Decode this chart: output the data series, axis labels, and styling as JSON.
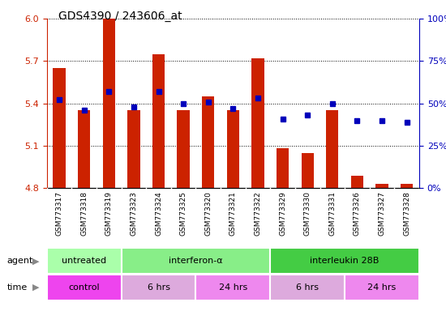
{
  "title": "GDS4390 / 243606_at",
  "samples": [
    "GSM773317",
    "GSM773318",
    "GSM773319",
    "GSM773323",
    "GSM773324",
    "GSM773325",
    "GSM773320",
    "GSM773321",
    "GSM773322",
    "GSM773329",
    "GSM773330",
    "GSM773331",
    "GSM773326",
    "GSM773327",
    "GSM773328"
  ],
  "transformed_count": [
    5.65,
    5.35,
    6.0,
    5.35,
    5.75,
    5.35,
    5.45,
    5.35,
    5.72,
    5.08,
    5.05,
    5.35,
    4.89,
    4.83,
    4.83
  ],
  "percentile_rank": [
    52,
    46,
    57,
    48,
    57,
    50,
    51,
    47,
    53,
    41,
    43,
    50,
    40,
    40,
    39
  ],
  "ylim_left": [
    4.8,
    6.0
  ],
  "yticks_left": [
    4.8,
    5.1,
    5.4,
    5.7,
    6.0
  ],
  "ylim_right": [
    0,
    100
  ],
  "yticks_right": [
    0,
    25,
    50,
    75,
    100
  ],
  "ytick_labels_right": [
    "0%",
    "25%",
    "50%",
    "75%",
    "100%"
  ],
  "bar_color": "#cc2200",
  "dot_color": "#0000bb",
  "plot_bg": "#ffffff",
  "tick_area_bg": "#dddddd",
  "agent_groups": [
    {
      "label": "untreated",
      "start": 0,
      "end": 3,
      "color": "#aaffaa"
    },
    {
      "label": "interferon-α",
      "start": 3,
      "end": 9,
      "color": "#88ee88"
    },
    {
      "label": "interleukin 28B",
      "start": 9,
      "end": 15,
      "color": "#44cc44"
    }
  ],
  "time_groups": [
    {
      "label": "control",
      "start": 0,
      "end": 3,
      "color": "#ee44ee"
    },
    {
      "label": "6 hrs",
      "start": 3,
      "end": 6,
      "color": "#ddaadd"
    },
    {
      "label": "24 hrs",
      "start": 6,
      "end": 9,
      "color": "#ee88ee"
    },
    {
      "label": "6 hrs",
      "start": 9,
      "end": 12,
      "color": "#ddaadd"
    },
    {
      "label": "24 hrs",
      "start": 12,
      "end": 15,
      "color": "#ee88ee"
    }
  ]
}
